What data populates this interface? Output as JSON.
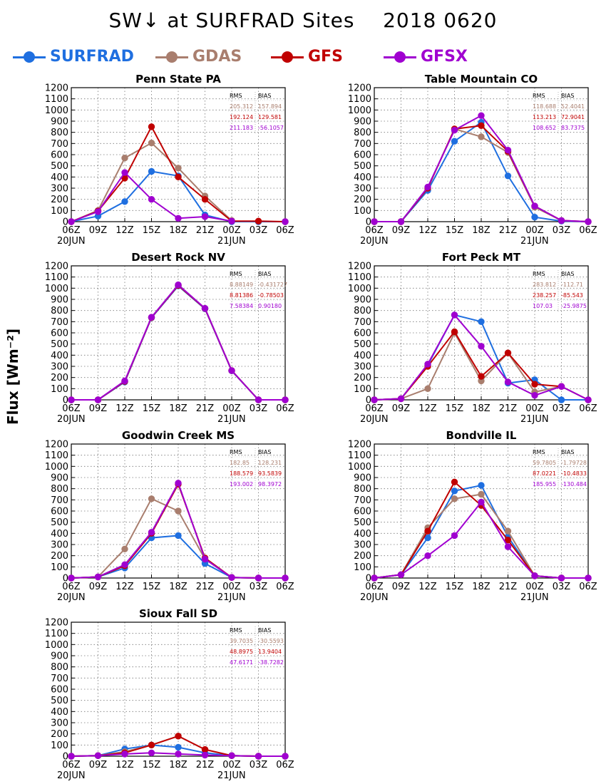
{
  "title": "SW↓ at SURFRAD Sites    2018 0620",
  "ylabel": "Flux [Wm⁻²]",
  "legend": [
    {
      "name": "SURFRAD",
      "color": "#1f6fe0"
    },
    {
      "name": "GDAS",
      "color": "#a97e6e"
    },
    {
      "name": "GFS",
      "color": "#c00000"
    },
    {
      "name": "GFSX",
      "color": "#a000d0"
    }
  ],
  "chart_data": [
    {
      "type": "line",
      "title": "Penn State PA",
      "categories": [
        "06Z",
        "09Z",
        "12Z",
        "15Z",
        "18Z",
        "21Z",
        "00Z",
        "03Z",
        "06Z"
      ],
      "date_labels": [
        "20JUN",
        "21JUN"
      ],
      "yticks": [
        0,
        100,
        200,
        300,
        400,
        500,
        600,
        700,
        800,
        900,
        1000,
        1100,
        1200
      ],
      "ylim": [
        0,
        1200
      ],
      "grid": true,
      "stats": {
        "header": [
          "RMS",
          "BIAS"
        ],
        "rows": [
          [
            "205.312",
            "157.894"
          ],
          [
            "192.124",
            "129.581"
          ],
          [
            "211.183",
            "-56.1057"
          ]
        ]
      },
      "series": [
        {
          "name": "SURFRAD",
          "values": [
            0,
            50,
            180,
            450,
            410,
            60,
            0,
            0,
            0
          ]
        },
        {
          "name": "GDAS",
          "values": [
            0,
            100,
            570,
            705,
            480,
            230,
            10,
            null,
            null
          ]
        },
        {
          "name": "GFS",
          "values": [
            0,
            95,
            390,
            850,
            400,
            200,
            5,
            5,
            0
          ]
        },
        {
          "name": "GFSX",
          "values": [
            0,
            90,
            440,
            200,
            30,
            45,
            5,
            null,
            0
          ]
        }
      ]
    },
    {
      "type": "line",
      "title": "Table Mountain CO",
      "categories": [
        "06Z",
        "09Z",
        "12Z",
        "15Z",
        "18Z",
        "21Z",
        "00Z",
        "03Z",
        "06Z"
      ],
      "date_labels": [
        "20JUN",
        "21JUN"
      ],
      "yticks": [
        0,
        100,
        200,
        300,
        400,
        500,
        600,
        700,
        800,
        900,
        1000,
        1100,
        1200
      ],
      "ylim": [
        0,
        1200
      ],
      "grid": true,
      "stats": {
        "header": [
          "RMS",
          "BIAS"
        ],
        "rows": [
          [
            "118.688",
            "52.4041"
          ],
          [
            "113.213",
            "72.9041"
          ],
          [
            "108.652",
            "83.7375"
          ]
        ]
      },
      "series": [
        {
          "name": "SURFRAD",
          "values": [
            0,
            0,
            280,
            720,
            890,
            410,
            40,
            5,
            0
          ]
        },
        {
          "name": "GDAS",
          "values": [
            0,
            0,
            300,
            830,
            760,
            620,
            130,
            10,
            null
          ]
        },
        {
          "name": "GFS",
          "values": [
            0,
            0,
            300,
            830,
            860,
            630,
            140,
            10,
            0
          ]
        },
        {
          "name": "GFSX",
          "values": [
            0,
            0,
            310,
            820,
            950,
            640,
            140,
            10,
            0
          ]
        }
      ]
    },
    {
      "type": "line",
      "title": "Desert Rock NV",
      "categories": [
        "06Z",
        "09Z",
        "12Z",
        "15Z",
        "18Z",
        "21Z",
        "00Z",
        "03Z",
        "06Z"
      ],
      "date_labels": [
        "20JUN",
        "21JUN"
      ],
      "yticks": [
        0,
        100,
        200,
        300,
        400,
        500,
        600,
        700,
        800,
        900,
        1000,
        1100,
        1200
      ],
      "ylim": [
        0,
        1200
      ],
      "grid": true,
      "stats": {
        "header": [
          "RMS",
          "BIAS"
        ],
        "rows": [
          [
            "8.88149",
            "-0.431727"
          ],
          [
            "8.81386",
            "-0.78503"
          ],
          [
            "7.58384",
            "0.90180"
          ]
        ]
      },
      "series": [
        {
          "name": "SURFRAD",
          "values": [
            0,
            0,
            160,
            735,
            1020,
            815,
            260,
            0,
            0
          ]
        },
        {
          "name": "GDAS",
          "values": [
            0,
            0,
            165,
            738,
            1025,
            818,
            262,
            0,
            0
          ]
        },
        {
          "name": "GFS",
          "values": [
            0,
            0,
            165,
            738,
            1025,
            818,
            262,
            0,
            0
          ]
        },
        {
          "name": "GFSX",
          "values": [
            0,
            0,
            170,
            740,
            1030,
            820,
            262,
            0,
            0
          ]
        }
      ]
    },
    {
      "type": "line",
      "title": "Fort Peck MT",
      "categories": [
        "06Z",
        "09Z",
        "12Z",
        "15Z",
        "18Z",
        "21Z",
        "00Z",
        "03Z",
        "06Z"
      ],
      "date_labels": [
        "20JUN",
        "21JUN"
      ],
      "yticks": [
        0,
        100,
        200,
        300,
        400,
        500,
        600,
        700,
        800,
        900,
        1000,
        1100,
        1200
      ],
      "ylim": [
        0,
        1200
      ],
      "grid": true,
      "stats": {
        "header": [
          "RMS",
          "BIAS"
        ],
        "rows": [
          [
            "283.812",
            "-112.71"
          ],
          [
            "238.257",
            "-85.543"
          ],
          [
            "107.03",
            "-25.9875"
          ]
        ]
      },
      "series": [
        {
          "name": "SURFRAD",
          "values": [
            0,
            10,
            310,
            760,
            700,
            150,
            180,
            0,
            0
          ]
        },
        {
          "name": "GDAS",
          "values": [
            0,
            10,
            100,
            600,
            170,
            420,
            70,
            120,
            null
          ]
        },
        {
          "name": "GFS",
          "values": [
            0,
            10,
            300,
            610,
            210,
            420,
            140,
            120,
            0
          ]
        },
        {
          "name": "GFSX",
          "values": [
            0,
            10,
            320,
            760,
            480,
            160,
            40,
            120,
            0
          ]
        }
      ]
    },
    {
      "type": "line",
      "title": "Goodwin Creek MS",
      "categories": [
        "06Z",
        "09Z",
        "12Z",
        "15Z",
        "18Z",
        "21Z",
        "00Z",
        "03Z",
        "06Z"
      ],
      "date_labels": [
        "20JUN",
        "21JUN"
      ],
      "yticks": [
        0,
        100,
        200,
        300,
        400,
        500,
        600,
        700,
        800,
        900,
        1000,
        1100,
        1200
      ],
      "ylim": [
        0,
        1200
      ],
      "grid": true,
      "stats": {
        "header": [
          "RMS",
          "BIAS"
        ],
        "rows": [
          [
            "182.85",
            "128.231"
          ],
          [
            "188.579",
            "93.5839"
          ],
          [
            "193.002",
            "98.3972"
          ]
        ]
      },
      "series": [
        {
          "name": "SURFRAD",
          "values": [
            0,
            10,
            90,
            360,
            380,
            130,
            5,
            0,
            0
          ]
        },
        {
          "name": "GDAS",
          "values": [
            0,
            10,
            260,
            710,
            600,
            170,
            5,
            0,
            null
          ]
        },
        {
          "name": "GFS",
          "values": [
            0,
            10,
            110,
            400,
            840,
            180,
            5,
            0,
            0
          ]
        },
        {
          "name": "GFSX",
          "values": [
            0,
            10,
            120,
            410,
            850,
            170,
            5,
            0,
            0
          ]
        }
      ]
    },
    {
      "type": "line",
      "title": "Bondville IL",
      "categories": [
        "06Z",
        "09Z",
        "12Z",
        "15Z",
        "18Z",
        "21Z",
        "00Z",
        "03Z",
        "06Z"
      ],
      "date_labels": [
        "20JUN",
        "21JUN"
      ],
      "yticks": [
        0,
        100,
        200,
        300,
        400,
        500,
        600,
        700,
        800,
        900,
        1000,
        1100,
        1200
      ],
      "ylim": [
        0,
        1200
      ],
      "grid": true,
      "stats": {
        "header": [
          "RMS",
          "BIAS"
        ],
        "rows": [
          [
            "59.7805",
            "-1.79728"
          ],
          [
            "87.0221",
            "-10.4833"
          ],
          [
            "185.955",
            "-130.484"
          ]
        ]
      },
      "series": [
        {
          "name": "SURFRAD",
          "values": [
            0,
            30,
            360,
            780,
            830,
            370,
            20,
            0,
            0
          ]
        },
        {
          "name": "GDAS",
          "values": [
            0,
            30,
            450,
            710,
            750,
            420,
            20,
            0,
            null
          ]
        },
        {
          "name": "GFS",
          "values": [
            0,
            30,
            420,
            860,
            650,
            340,
            20,
            0,
            0
          ]
        },
        {
          "name": "GFSX",
          "values": [
            0,
            30,
            200,
            380,
            680,
            280,
            20,
            0,
            0
          ]
        }
      ]
    },
    {
      "type": "line",
      "title": "Sioux Fall SD",
      "categories": [
        "06Z",
        "09Z",
        "12Z",
        "15Z",
        "18Z",
        "21Z",
        "00Z",
        "03Z",
        "06Z"
      ],
      "date_labels": [
        "20JUN",
        "21JUN"
      ],
      "yticks": [
        0,
        100,
        200,
        300,
        400,
        500,
        600,
        700,
        800,
        900,
        1000,
        1100,
        1200
      ],
      "ylim": [
        0,
        1200
      ],
      "grid": true,
      "stats": {
        "header": [
          "RMS",
          "BIAS"
        ],
        "rows": [
          [
            "39.7035",
            "-30.5593"
          ],
          [
            "48.8975",
            "13.9404"
          ],
          [
            "47.6171",
            "-38.7282"
          ]
        ]
      },
      "series": [
        {
          "name": "SURFRAD",
          "values": [
            0,
            5,
            65,
            100,
            80,
            30,
            5,
            0,
            0
          ]
        },
        {
          "name": "GDAS",
          "values": [
            0,
            5,
            40,
            100,
            180,
            60,
            5,
            0,
            null
          ]
        },
        {
          "name": "GFS",
          "values": [
            0,
            5,
            30,
            100,
            180,
            60,
            5,
            0,
            0
          ]
        },
        {
          "name": "GFSX",
          "values": [
            0,
            5,
            20,
            30,
            20,
            10,
            5,
            0,
            0
          ]
        }
      ]
    }
  ]
}
